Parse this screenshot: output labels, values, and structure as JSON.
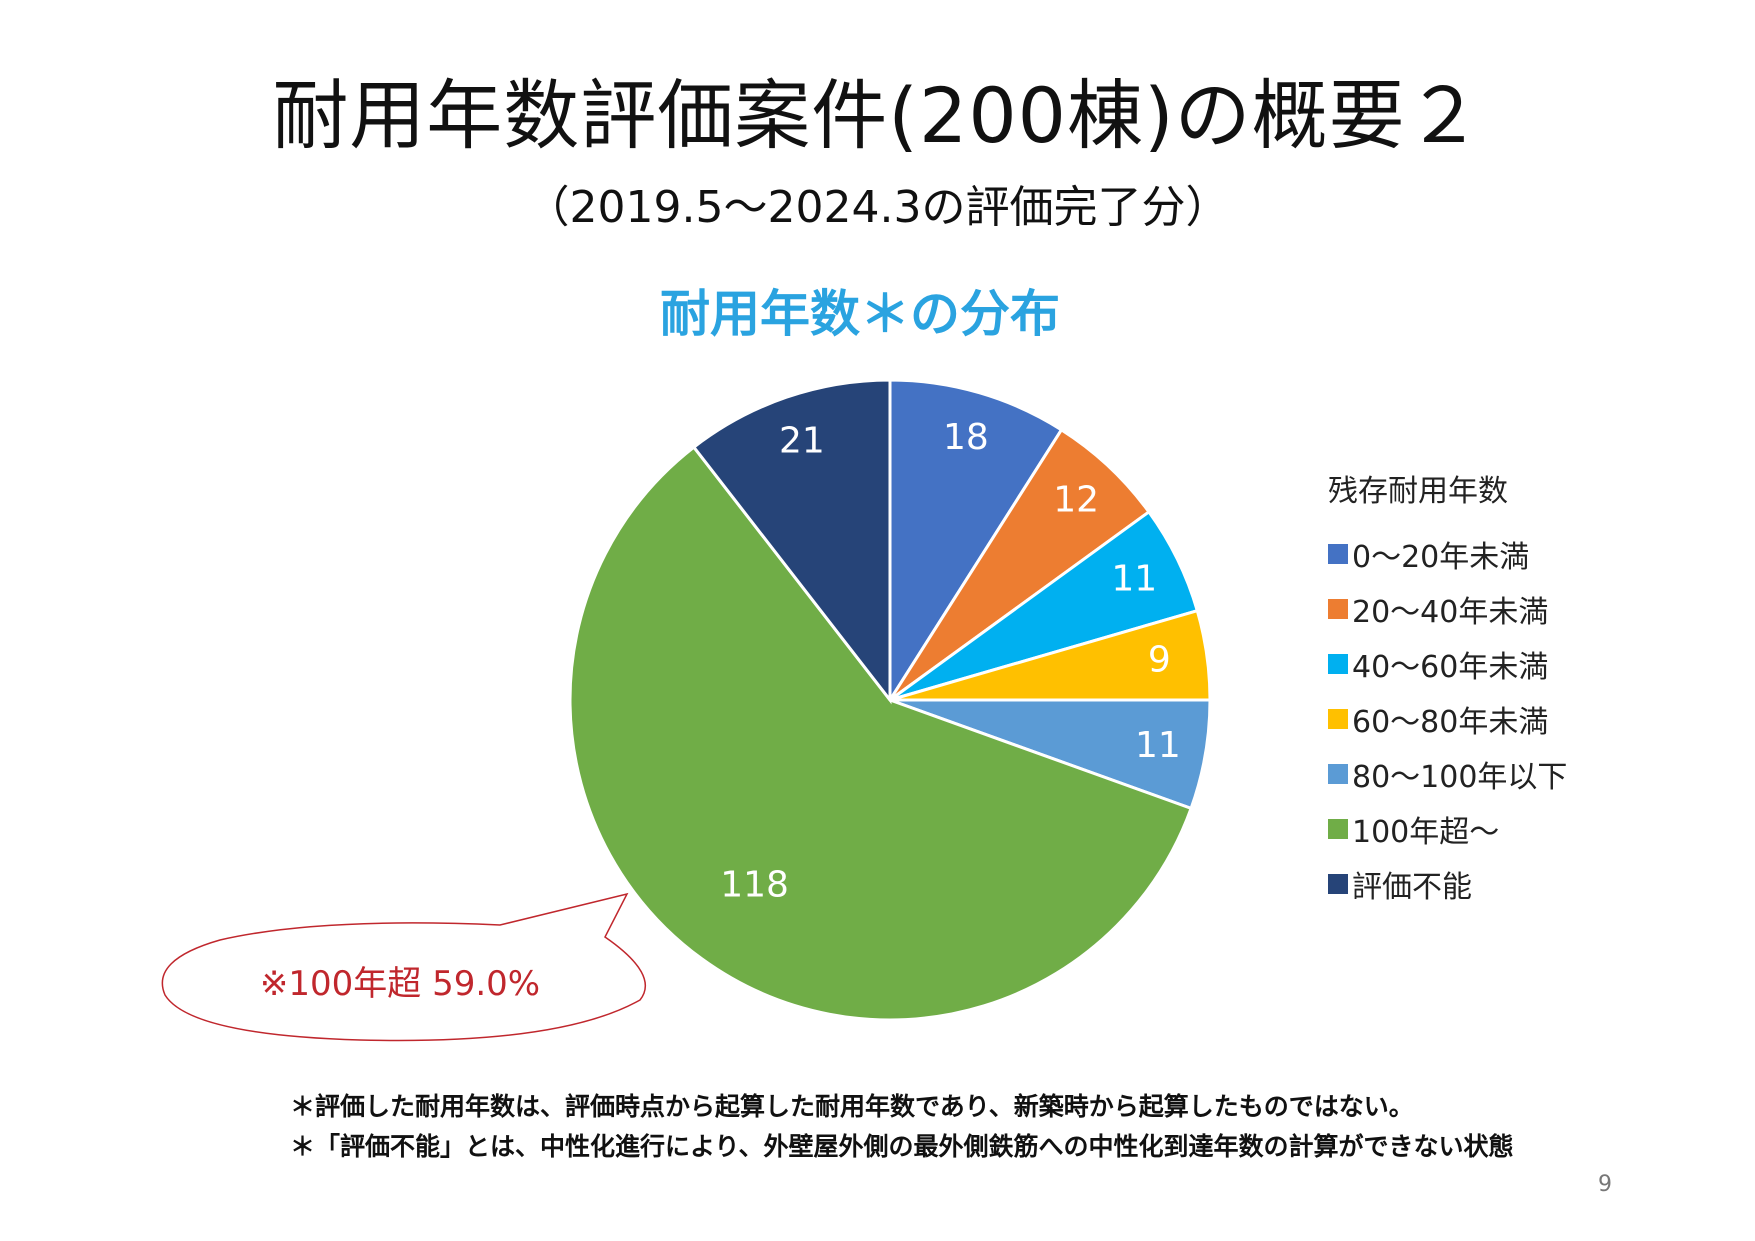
{
  "title": "耐用年数評価案件(200棟)の概要２",
  "subtitle": "（2019.5～2024.3の評価完了分）",
  "callout": "※100年超 59.0%",
  "notes": [
    "＊評価した耐用年数は、評価時点から起算した耐用年数であり、新築時から起算したものではない。",
    "＊「評価不能」とは、中性化進行により、外壁屋外側の最外側鉄筋への中性化到達年数の計算ができない状態"
  ],
  "page_number": "9",
  "chart_data": {
    "type": "pie",
    "title": "耐用年数＊の分布",
    "legend_title": "残存耐用年数",
    "legend_position": "right",
    "categories": [
      "0～20年未満",
      "20～40年未満",
      "40～60年未満",
      "60～80年未満",
      "80～100年以下",
      "100年超～",
      "評価不能"
    ],
    "values": [
      18,
      12,
      11,
      9,
      11,
      118,
      21
    ],
    "colors": [
      "#4472c4",
      "#ed7d31",
      "#00b0f0",
      "#ffc000",
      "#5b9bd5",
      "#70ad47",
      "#264478"
    ]
  }
}
